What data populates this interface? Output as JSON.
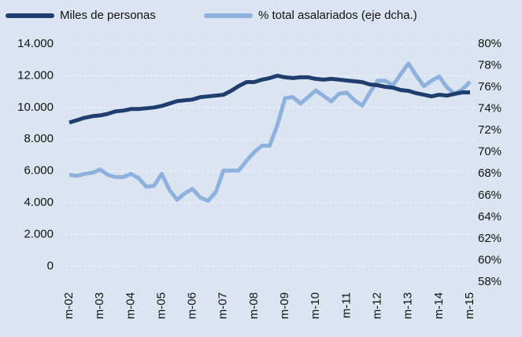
{
  "chart_data": {
    "type": "line",
    "categories": [
      "m-02",
      null,
      null,
      null,
      "m-03",
      null,
      null,
      null,
      "m-04",
      null,
      null,
      null,
      "m-05",
      null,
      null,
      null,
      "m-06",
      null,
      null,
      null,
      "m-07",
      null,
      null,
      null,
      "m-08",
      null,
      null,
      null,
      "m-09",
      null,
      null,
      null,
      "m-10",
      null,
      null,
      null,
      "m-11",
      null,
      null,
      null,
      "m-12",
      null,
      null,
      null,
      "m-13",
      null,
      null,
      null,
      "m-14",
      null,
      null,
      null,
      "m-15"
    ],
    "series": [
      {
        "name": "Miles de personas",
        "color": "#1f3d6e",
        "values": [
          9050,
          9200,
          9350,
          9450,
          9500,
          9600,
          9750,
          9800,
          9900,
          9900,
          9950,
          10000,
          10100,
          10250,
          10400,
          10450,
          10500,
          10650,
          10700,
          10750,
          10800,
          11050,
          11350,
          11600,
          11600,
          11750,
          11850,
          12000,
          11900,
          11850,
          11900,
          11900,
          11800,
          11750,
          11800,
          11750,
          11700,
          11650,
          11600,
          11450,
          11400,
          11300,
          11250,
          11100,
          11050,
          10900,
          10800,
          10700,
          10800,
          10750,
          10850,
          10950,
          10950
        ]
      },
      {
        "name": "% total asalariados (eje dcha.)",
        "color": "#8fb1de",
        "axis": "y2",
        "values": [
          67.9,
          67.8,
          68.0,
          68.1,
          68.4,
          67.9,
          67.7,
          67.7,
          68.0,
          67.6,
          66.8,
          66.9,
          68.0,
          66.5,
          65.6,
          66.2,
          66.6,
          65.8,
          65.5,
          66.3,
          68.3,
          68.3,
          68.3,
          69.2,
          70.0,
          70.6,
          70.6,
          72.5,
          75.0,
          75.1,
          74.5,
          75.1,
          75.7,
          75.2,
          74.7,
          75.4,
          75.5,
          74.8,
          74.3,
          75.5,
          76.6,
          76.6,
          76.2,
          77.2,
          78.2,
          77.1,
          76.1,
          76.6,
          77.0,
          76.0,
          75.4,
          75.8,
          76.5
        ]
      }
    ],
    "ylim": [
      -1000,
      14000
    ],
    "yticks": [
      0,
      {
        "value": 2000,
        "label": "2.000"
      },
      {
        "value": 4000,
        "label": "4.000"
      },
      {
        "value": 6000,
        "label": "6.000"
      },
      {
        "value": 8000,
        "label": "8.000"
      },
      {
        "value": 10000,
        "label": "10.000"
      },
      {
        "value": 12000,
        "label": "12.000"
      },
      {
        "value": 14000,
        "label": "14.000"
      }
    ],
    "y2lim": [
      58,
      80
    ],
    "y2ticks": [
      {
        "value": 58,
        "label": "58%"
      },
      {
        "value": 60,
        "label": "60%"
      },
      {
        "value": 62,
        "label": "62%"
      },
      {
        "value": 64,
        "label": "64%"
      },
      {
        "value": 66,
        "label": "66%"
      },
      {
        "value": 68,
        "label": "68%"
      },
      {
        "value": 70,
        "label": "70%"
      },
      {
        "value": 72,
        "label": "72%"
      },
      {
        "value": 74,
        "label": "74%"
      },
      {
        "value": 76,
        "label": "76%"
      },
      {
        "value": 78,
        "label": "78%"
      },
      {
        "value": 80,
        "label": "80%"
      }
    ],
    "grid": true
  }
}
